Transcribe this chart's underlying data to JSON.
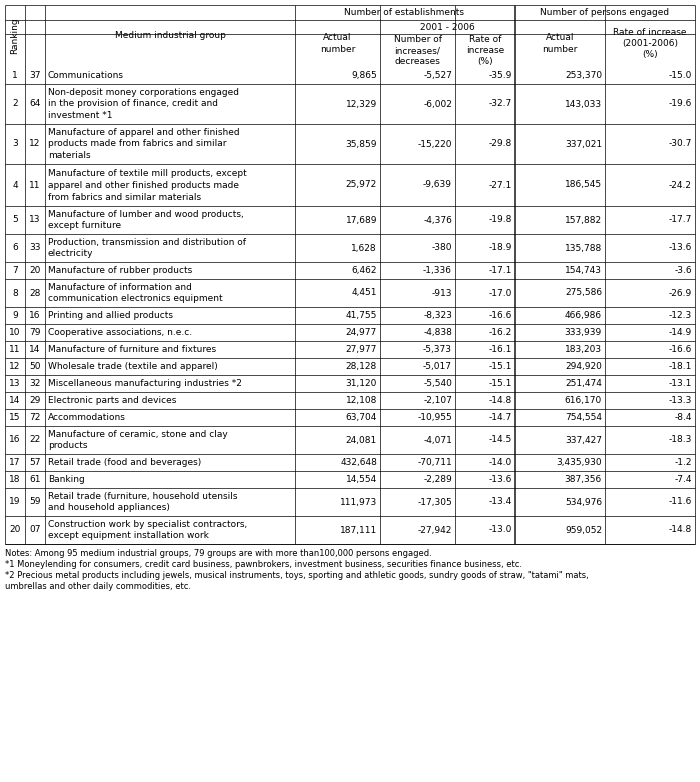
{
  "rows": [
    {
      "rank": "1",
      "code": "37",
      "name": "Communications",
      "actual": "9,865",
      "changes": "-5,527",
      "rate": "-35.9",
      "persons_actual": "253,370",
      "persons_rate": "-15.0"
    },
    {
      "rank": "2",
      "code": "64",
      "name": "Non-deposit money corporations engaged\nin the provision of finance, credit and\ninvestment *1",
      "actual": "12,329",
      "changes": "-6,002",
      "rate": "-32.7",
      "persons_actual": "143,033",
      "persons_rate": "-19.6"
    },
    {
      "rank": "3",
      "code": "12",
      "name": "Manufacture of apparel and other finished\nproducts made from fabrics and similar\nmaterials",
      "actual": "35,859",
      "changes": "-15,220",
      "rate": "-29.8",
      "persons_actual": "337,021",
      "persons_rate": "-30.7"
    },
    {
      "rank": "4",
      "code": "11",
      "name": "Manufacture of textile mill products, except\napparel and other finished products made\nfrom fabrics and similar materials",
      "actual": "25,972",
      "changes": "-9,639",
      "rate": "-27.1",
      "persons_actual": "186,545",
      "persons_rate": "-24.2"
    },
    {
      "rank": "5",
      "code": "13",
      "name": "Manufacture of lumber and wood products,\nexcept furniture",
      "actual": "17,689",
      "changes": "-4,376",
      "rate": "-19.8",
      "persons_actual": "157,882",
      "persons_rate": "-17.7"
    },
    {
      "rank": "6",
      "code": "33",
      "name": "Production, transmission and distribution of\nelectricity",
      "actual": "1,628",
      "changes": "-380",
      "rate": "-18.9",
      "persons_actual": "135,788",
      "persons_rate": "-13.6"
    },
    {
      "rank": "7",
      "code": "20",
      "name": "Manufacture of rubber products",
      "actual": "6,462",
      "changes": "-1,336",
      "rate": "-17.1",
      "persons_actual": "154,743",
      "persons_rate": "-3.6"
    },
    {
      "rank": "8",
      "code": "28",
      "name": "Manufacture of information and\ncommunication electronics equipment",
      "actual": "4,451",
      "changes": "-913",
      "rate": "-17.0",
      "persons_actual": "275,586",
      "persons_rate": "-26.9"
    },
    {
      "rank": "9",
      "code": "16",
      "name": "Printing and allied products",
      "actual": "41,755",
      "changes": "-8,323",
      "rate": "-16.6",
      "persons_actual": "466,986",
      "persons_rate": "-12.3"
    },
    {
      "rank": "10",
      "code": "79",
      "name": "Cooperative associations, n.e.c.",
      "actual": "24,977",
      "changes": "-4,838",
      "rate": "-16.2",
      "persons_actual": "333,939",
      "persons_rate": "-14.9"
    },
    {
      "rank": "11",
      "code": "14",
      "name": "Manufacture of furniture and fixtures",
      "actual": "27,977",
      "changes": "-5,373",
      "rate": "-16.1",
      "persons_actual": "183,203",
      "persons_rate": "-16.6"
    },
    {
      "rank": "12",
      "code": "50",
      "name": "Wholesale trade (textile and apparel)",
      "actual": "28,128",
      "changes": "-5,017",
      "rate": "-15.1",
      "persons_actual": "294,920",
      "persons_rate": "-18.1"
    },
    {
      "rank": "13",
      "code": "32",
      "name": "Miscellaneous manufacturing industries *2",
      "actual": "31,120",
      "changes": "-5,540",
      "rate": "-15.1",
      "persons_actual": "251,474",
      "persons_rate": "-13.1"
    },
    {
      "rank": "14",
      "code": "29",
      "name": "Electronic parts and devices",
      "actual": "12,108",
      "changes": "-2,107",
      "rate": "-14.8",
      "persons_actual": "616,170",
      "persons_rate": "-13.3"
    },
    {
      "rank": "15",
      "code": "72",
      "name": "Accommodations",
      "actual": "63,704",
      "changes": "-10,955",
      "rate": "-14.7",
      "persons_actual": "754,554",
      "persons_rate": "-8.4"
    },
    {
      "rank": "16",
      "code": "22",
      "name": "Manufacture of ceramic, stone and clay\nproducts",
      "actual": "24,081",
      "changes": "-4,071",
      "rate": "-14.5",
      "persons_actual": "337,427",
      "persons_rate": "-18.3"
    },
    {
      "rank": "17",
      "code": "57",
      "name": "Retail trade (food and beverages)",
      "actual": "432,648",
      "changes": "-70,711",
      "rate": "-14.0",
      "persons_actual": "3,435,930",
      "persons_rate": "-1.2"
    },
    {
      "rank": "18",
      "code": "61",
      "name": "Banking",
      "actual": "14,554",
      "changes": "-2,289",
      "rate": "-13.6",
      "persons_actual": "387,356",
      "persons_rate": "-7.4"
    },
    {
      "rank": "19",
      "code": "59",
      "name": "Retail trade (furniture, household utensils\nand household appliances)",
      "actual": "111,973",
      "changes": "-17,305",
      "rate": "-13.4",
      "persons_actual": "534,976",
      "persons_rate": "-11.6"
    },
    {
      "rank": "20",
      "code": "07",
      "name": "Construction work by specialist contractors,\nexcept equipment installation work",
      "actual": "187,111",
      "changes": "-27,942",
      "rate": "-13.0",
      "persons_actual": "959,052",
      "persons_rate": "-14.8"
    }
  ],
  "notes": [
    "Notes: Among 95 medium industrial groups, 79 groups are with more than100,000 persons engaged.",
    "*1 Moneylending for consumers, credit card business, pawnbrokers, investment business, securities finance business, etc.",
    "*2 Precious metal products including jewels, musical instruments, toys, sporting and athletic goods, sundry goods of straw, \"tatami\" mats,",
    "umbrellas and other daily commodities, etc."
  ],
  "header1": "Number of establishments",
  "header2": "Number of persons engaged",
  "header3": "2001 - 2006",
  "col_ranking": "Ranking",
  "col_medium": "Medium industrial group",
  "col_actual": "Actual\nnumber",
  "col_changes": "Number of\nincreases/\ndecreases",
  "col_rate": "Rate of\nincrease\n(%)",
  "col_persons_actual": "Actual\nnumber",
  "col_persons_rate": "Rate of increase\n(2001-2006)\n(%)",
  "font_size": 6.5,
  "note_font_size": 6.0,
  "lw": 0.5
}
